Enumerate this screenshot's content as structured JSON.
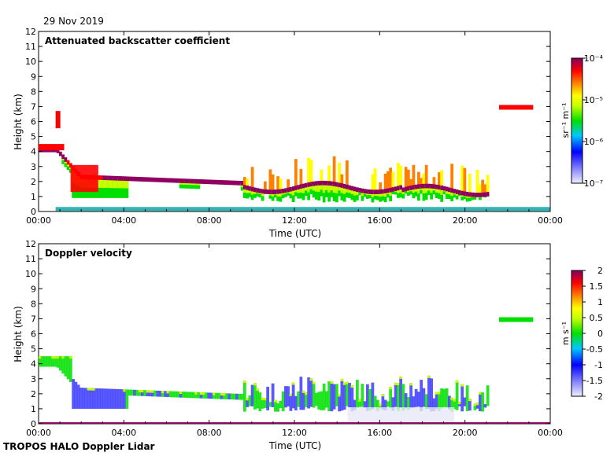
{
  "date": "29 Nov 2019",
  "footer": "TROPOS HALO Doppler Lidar",
  "chart_data": [
    {
      "type": "heatmap",
      "title": "Attenuated backscatter coefficient",
      "xlabel": "Time (UTC)",
      "ylabel": "Height (km)",
      "xticks": [
        "00:00",
        "04:00",
        "08:00",
        "12:00",
        "16:00",
        "20:00",
        "00:00"
      ],
      "xlim_hours": [
        0,
        24
      ],
      "yticks": [
        0,
        1,
        2,
        3,
        4,
        5,
        6,
        7,
        8,
        9,
        10,
        11,
        12
      ],
      "ylim": [
        0,
        12
      ],
      "colorbar": {
        "label": "sr⁻¹ m⁻¹",
        "scale": "log",
        "ticks": [
          "10⁻⁴",
          "10⁻⁵",
          "10⁻⁶",
          "10⁻⁷"
        ],
        "range": [
          1e-07,
          0.0001
        ]
      },
      "features": [
        {
          "desc": "decoupled cloud layer base",
          "t_start": 1.0,
          "t_end": 9.5,
          "height_km": [
            2.3,
            2.0,
            1.9,
            1.9,
            1.8
          ],
          "level": "high"
        },
        {
          "desc": "cloud base afternoon",
          "t_start": 9.5,
          "t_end": 21.0,
          "height_km": [
            1.6,
            1.5,
            1.3,
            1.4,
            1.5,
            1.2
          ],
          "level": "high"
        },
        {
          "desc": "early morning layer",
          "t_start": 0.0,
          "t_end": 1.0,
          "height_km": [
            4.2,
            4.0
          ],
          "level": "high"
        },
        {
          "desc": "elevated cloud patch",
          "t_start": 21.5,
          "t_end": 23.2,
          "height_km": [
            6.9,
            6.7
          ],
          "level": "high"
        }
      ]
    },
    {
      "type": "heatmap",
      "title": "Doppler velocity",
      "xlabel": "Time (UTC)",
      "ylabel": "Height (km)",
      "xticks": [
        "00:00",
        "04:00",
        "08:00",
        "12:00",
        "16:00",
        "20:00",
        "00:00"
      ],
      "xlim_hours": [
        0,
        24
      ],
      "yticks": [
        0,
        1,
        2,
        3,
        4,
        5,
        6,
        7,
        8,
        9,
        10,
        11,
        12
      ],
      "ylim": [
        0,
        12
      ],
      "colorbar": {
        "label": "m s⁻¹",
        "scale": "linear",
        "ticks": [
          "2",
          "1.5",
          "1",
          "0.5",
          "0",
          "-0.5",
          "-1",
          "-1.5",
          "-2"
        ],
        "range": [
          -2,
          2
        ]
      }
    }
  ],
  "colors": {
    "colormap": [
      "#e8e8f8",
      "#3c3cff",
      "#00c8ff",
      "#00e000",
      "#c8ff00",
      "#ffff00",
      "#ff8000",
      "#ff0000",
      "#900060"
    ]
  }
}
